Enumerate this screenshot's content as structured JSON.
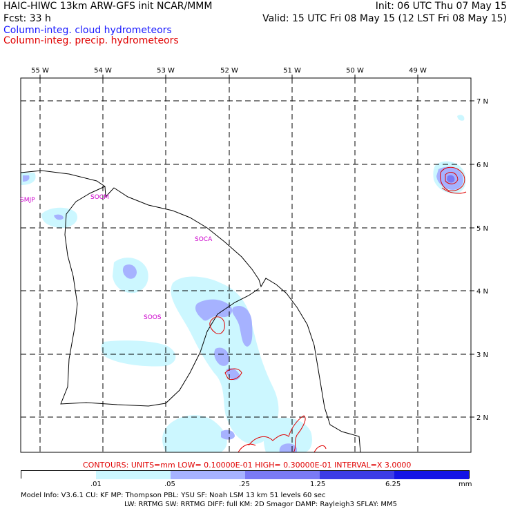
{
  "header": {
    "title_left": "HAIC-HIWC 13km ARW-GFS init   NCAR/MMM",
    "init": "Init: 06 UTC Thu 07 May 15",
    "fcst": "Fcst:   33 h",
    "valid": "Valid: 15 UTC Fri 08 May 15 (12 LST Fri 08 May 15)",
    "field_blue": "Column-integ. cloud hydrometeors",
    "field_red": "Column-integ. precip. hydrometeors"
  },
  "map": {
    "lon_labels": [
      "55 W",
      "54 W",
      "53 W",
      "52 W",
      "51 W",
      "50 W",
      "49 W"
    ],
    "lat_labels": [
      "7 N",
      "6 N",
      "5 N",
      "4 N",
      "3 N",
      "2 N"
    ],
    "stations": [
      "SMJP",
      "SOCM",
      "SOCA",
      "SOOS"
    ]
  },
  "contours_line": "CONTOURS:  UNITS=mm  LOW= 0.10000E-01  HIGH= 0.30000E-01  INTERVAL=X  3.0000",
  "colorbar": {
    "ticks": [
      ".01",
      ".05",
      ".25",
      "1.25",
      "6.25"
    ],
    "units": "mm",
    "colors": [
      "#ffffff",
      "#ccf7ff",
      "#a6b2ff",
      "#7a7af5",
      "#3d3de6",
      "#1414e6"
    ]
  },
  "model_info": {
    "line1": "Model Info: V3.6.1    CU: KF      MP: Thompson     PBL: YSU      SF: Noah LSM      13 km    51 levels   60 sec",
    "line2": "LW: RRTMG    SW: RRTMG   DIFF: full    KM: 2D Smagor DAMP: Rayleigh3  SFLAY: MM5"
  }
}
